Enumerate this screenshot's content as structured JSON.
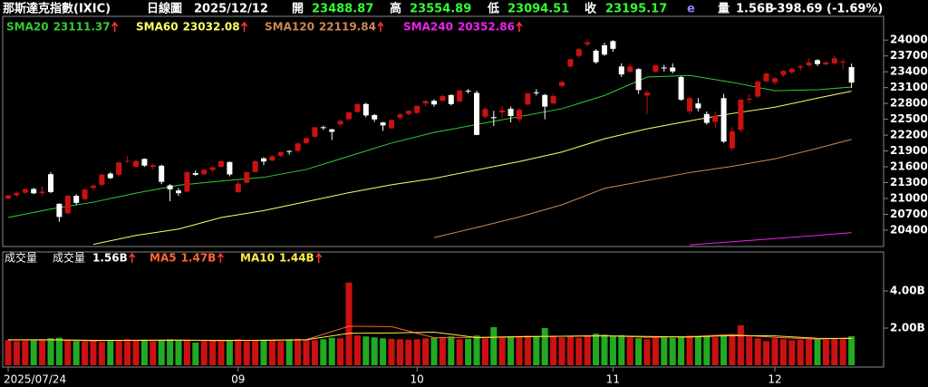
{
  "chart_data": [
    {
      "type": "candlestick",
      "header": {
        "name": "那斯達克指數(IXIC)",
        "period": "日線圖",
        "date": "2025/12/12",
        "fields": [
          {
            "label": "開",
            "value": 23488.87
          },
          {
            "label": "高",
            "value": 23554.89
          },
          {
            "label": "低",
            "value": 23094.51
          },
          {
            "label": "收",
            "value": 23195.17
          }
        ],
        "flag": "e",
        "volume_label": "量",
        "volume": {
          "value": 1.56,
          "label": "1.56B"
        },
        "change": -398.69,
        "change_pct": {
          "value": -1.69,
          "label": "(-1.69%)"
        }
      },
      "up_color": "#cc1111",
      "down_color": "#ffffff",
      "ylim": [
        20090,
        24450
      ],
      "yticks": [
        20400,
        20700,
        21000,
        21300,
        21600,
        21900,
        22200,
        22500,
        22800,
        23100,
        23400,
        23700,
        24000
      ],
      "ohlc": [
        [
          21000,
          21080,
          20980,
          21057
        ],
        [
          21060,
          21130,
          21030,
          21108
        ],
        [
          21110,
          21190,
          21080,
          21178
        ],
        [
          21180,
          21200,
          21080,
          21098
        ],
        [
          21100,
          21230,
          21050,
          21130
        ],
        [
          21460,
          21500,
          21100,
          21122
        ],
        [
          20900,
          20910,
          20560,
          20650
        ],
        [
          20720,
          21060,
          20700,
          21053
        ],
        [
          21050,
          21080,
          20880,
          20916
        ],
        [
          20990,
          21190,
          20960,
          21169
        ],
        [
          21200,
          21280,
          21150,
          21242
        ],
        [
          21260,
          21470,
          21230,
          21450
        ],
        [
          21470,
          21500,
          21370,
          21385
        ],
        [
          21450,
          21690,
          21420,
          21681
        ],
        [
          21700,
          21800,
          21680,
          21713
        ],
        [
          21600,
          21740,
          21580,
          21710
        ],
        [
          21750,
          21760,
          21600,
          21622
        ],
        [
          21600,
          21660,
          21550,
          21630
        ],
        [
          21620,
          21640,
          21270,
          21315
        ],
        [
          21250,
          21270,
          20950,
          21172
        ],
        [
          21150,
          21200,
          21050,
          21100
        ],
        [
          21130,
          21520,
          21120,
          21497
        ],
        [
          21480,
          21530,
          21430,
          21449
        ],
        [
          21460,
          21560,
          21440,
          21544
        ],
        [
          21540,
          21610,
          21500,
          21590
        ],
        [
          21600,
          21720,
          21580,
          21705
        ],
        [
          21690,
          21700,
          21420,
          21455
        ],
        [
          21120,
          21330,
          21100,
          21280
        ],
        [
          21300,
          21510,
          21280,
          21497
        ],
        [
          21500,
          21720,
          21490,
          21707
        ],
        [
          21760,
          21780,
          21630,
          21700
        ],
        [
          21720,
          21820,
          21700,
          21799
        ],
        [
          21810,
          21890,
          21780,
          21879
        ],
        [
          21900,
          21910,
          21830,
          21886
        ],
        [
          21900,
          22060,
          21880,
          22043
        ],
        [
          22050,
          22160,
          22030,
          22141
        ],
        [
          22170,
          22360,
          22150,
          22348
        ],
        [
          22350,
          22380,
          22300,
          22333
        ],
        [
          22310,
          22320,
          22110,
          22261
        ],
        [
          22400,
          22490,
          22380,
          22470
        ],
        [
          22500,
          22640,
          22480,
          22631
        ],
        [
          22640,
          22800,
          22620,
          22788
        ],
        [
          22790,
          22810,
          22540,
          22573
        ],
        [
          22580,
          22600,
          22450,
          22497
        ],
        [
          22440,
          22450,
          22280,
          22384
        ],
        [
          22330,
          22500,
          22320,
          22484
        ],
        [
          22530,
          22620,
          22500,
          22591
        ],
        [
          22600,
          22670,
          22570,
          22660
        ],
        [
          22620,
          22760,
          22600,
          22755
        ],
        [
          22800,
          22860,
          22750,
          22844
        ],
        [
          22850,
          22880,
          22740,
          22780
        ],
        [
          22850,
          22960,
          22830,
          22941
        ],
        [
          22960,
          22970,
          22760,
          22788
        ],
        [
          22840,
          23060,
          22820,
          23043
        ],
        [
          23040,
          23070,
          22990,
          23024
        ],
        [
          23000,
          23040,
          22200,
          22204
        ],
        [
          22550,
          22730,
          22510,
          22694
        ],
        [
          22540,
          22660,
          22370,
          22521
        ],
        [
          22630,
          22750,
          22520,
          22670
        ],
        [
          22700,
          22740,
          22440,
          22562
        ],
        [
          22500,
          22710,
          22450,
          22680
        ],
        [
          22780,
          23000,
          22760,
          22991
        ],
        [
          23010,
          23070,
          22950,
          23005
        ],
        [
          22960,
          22980,
          22500,
          22740
        ],
        [
          22800,
          22980,
          22780,
          22941
        ],
        [
          23130,
          23230,
          23100,
          23205
        ],
        [
          23500,
          23650,
          23480,
          23637
        ],
        [
          23700,
          23850,
          23660,
          23827
        ],
        [
          23920,
          24020,
          23880,
          23958
        ],
        [
          23800,
          23830,
          23550,
          23581
        ],
        [
          23900,
          23950,
          23700,
          23725
        ],
        [
          23980,
          24000,
          23780,
          23834
        ],
        [
          23500,
          23560,
          23300,
          23349
        ],
        [
          23400,
          23560,
          23380,
          23500
        ],
        [
          23450,
          23470,
          22980,
          23054
        ],
        [
          22950,
          23050,
          22600,
          23005
        ],
        [
          23400,
          23530,
          23380,
          23527
        ],
        [
          23480,
          23530,
          23400,
          23468
        ],
        [
          23480,
          23560,
          23370,
          23406
        ],
        [
          23300,
          23320,
          22850,
          22871
        ],
        [
          22650,
          22920,
          22600,
          22901
        ],
        [
          22800,
          22900,
          22650,
          22708
        ],
        [
          22600,
          22650,
          22400,
          22432
        ],
        [
          22450,
          22650,
          22340,
          22564
        ],
        [
          22900,
          22980,
          22050,
          22078
        ],
        [
          21950,
          22350,
          21900,
          22273
        ],
        [
          22300,
          22890,
          22250,
          22872
        ],
        [
          22880,
          22970,
          22800,
          22888
        ],
        [
          22930,
          23230,
          22900,
          23215
        ],
        [
          23220,
          23380,
          23200,
          23366
        ],
        [
          23200,
          23300,
          23150,
          23276
        ],
        [
          23340,
          23430,
          23300,
          23414
        ],
        [
          23390,
          23480,
          23350,
          23454
        ],
        [
          23480,
          23530,
          23420,
          23506
        ],
        [
          23520,
          23650,
          23500,
          23578
        ],
        [
          23620,
          23640,
          23510,
          23546
        ],
        [
          23540,
          23610,
          23520,
          23576
        ],
        [
          23560,
          23700,
          23530,
          23654
        ],
        [
          23590,
          23640,
          23450,
          23593
        ],
        [
          23488.87,
          23554.89,
          23094.51,
          23195.17
        ]
      ],
      "series": [
        {
          "name": "SMA20",
          "latest": 23111.37,
          "color": "#33cc33",
          "x": [
            0,
            5,
            10,
            15,
            20,
            25,
            30,
            35,
            40,
            45,
            50,
            55,
            60,
            65,
            70,
            75,
            80,
            85,
            90,
            95,
            99
          ],
          "values": [
            20640,
            20800,
            20930,
            21100,
            21250,
            21330,
            21400,
            21550,
            21800,
            22050,
            22250,
            22400,
            22550,
            22700,
            22950,
            23300,
            23330,
            23200,
            23040,
            23060,
            23111
          ]
        },
        {
          "name": "SMA60",
          "latest": 23032.08,
          "color": "#ffff66",
          "x": [
            0,
            5,
            10,
            15,
            20,
            25,
            30,
            35,
            40,
            45,
            50,
            55,
            60,
            65,
            70,
            75,
            80,
            85,
            90,
            95,
            99
          ],
          "values": [
            null,
            null,
            20130,
            20300,
            20420,
            20640,
            20770,
            20940,
            21110,
            21260,
            21380,
            21540,
            21700,
            21880,
            22130,
            22320,
            22470,
            22610,
            22730,
            22900,
            23032
          ]
        },
        {
          "name": "SMA120",
          "latest": 22119.84,
          "color": "#cc8855",
          "x": [
            45,
            50,
            55,
            60,
            65,
            70,
            75,
            80,
            85,
            90,
            95,
            99
          ],
          "values": [
            null,
            20260,
            20450,
            20650,
            20880,
            21190,
            21340,
            21490,
            21610,
            21750,
            21950,
            22120
          ]
        },
        {
          "name": "SMA240",
          "latest": 20352.86,
          "color": "#ee22ee",
          "x": [
            78,
            80,
            85,
            90,
            95,
            99
          ],
          "values": [
            null,
            20120,
            20180,
            20240,
            20300,
            20353
          ]
        }
      ]
    },
    {
      "type": "bar",
      "label": "成交量",
      "series_name": "成交量",
      "latest": {
        "value": 1.56,
        "label": "1.56B"
      },
      "up_color": "#cc1111",
      "down_color": "#22aa22",
      "ylim": [
        0,
        6
      ],
      "yticks": [
        {
          "value": 2,
          "label": "2.00B"
        },
        {
          "value": 4,
          "label": "4.00B"
        }
      ],
      "categories": [
        "2025/07/24",
        null,
        null,
        null,
        null,
        null,
        null,
        null,
        null,
        null,
        null,
        null,
        null,
        null,
        null,
        null,
        null,
        null,
        null,
        null,
        null,
        null,
        null,
        null,
        null,
        null,
        null,
        "09",
        null,
        null,
        null,
        null,
        null,
        null,
        null,
        null,
        null,
        null,
        null,
        null,
        null,
        null,
        null,
        null,
        null,
        null,
        null,
        null,
        "10",
        null,
        null,
        null,
        null,
        null,
        null,
        null,
        null,
        null,
        null,
        null,
        null,
        null,
        null,
        null,
        null,
        null,
        null,
        null,
        null,
        null,
        null,
        "11",
        null,
        null,
        null,
        null,
        null,
        null,
        null,
        null,
        null,
        null,
        null,
        null,
        null,
        null,
        null,
        null,
        null,
        null,
        "12",
        null,
        null,
        null,
        null,
        null,
        null,
        null,
        null,
        null
      ],
      "values": [
        1.35,
        1.3,
        1.32,
        1.34,
        1.38,
        1.45,
        1.48,
        1.33,
        1.3,
        1.28,
        1.3,
        1.25,
        1.3,
        1.32,
        1.4,
        1.35,
        1.38,
        1.3,
        1.36,
        1.4,
        1.32,
        1.35,
        1.22,
        1.3,
        1.33,
        1.28,
        1.36,
        1.4,
        1.3,
        1.32,
        1.38,
        1.35,
        1.3,
        1.4,
        1.42,
        1.38,
        1.35,
        1.4,
        1.48,
        1.45,
        4.45,
        1.6,
        1.55,
        1.5,
        1.45,
        1.42,
        1.4,
        1.38,
        1.4,
        1.45,
        1.5,
        1.48,
        1.55,
        1.4,
        1.42,
        1.6,
        1.45,
        2.05,
        1.48,
        1.55,
        1.52,
        1.6,
        1.58,
        2.0,
        1.58,
        1.5,
        1.55,
        1.48,
        1.6,
        1.7,
        1.65,
        1.55,
        1.62,
        1.5,
        1.45,
        1.4,
        1.55,
        1.5,
        1.48,
        1.52,
        1.6,
        1.55,
        1.58,
        1.5,
        1.62,
        1.65,
        2.15,
        1.55,
        1.45,
        1.3,
        1.45,
        1.4,
        1.35,
        1.38,
        1.4,
        1.42,
        1.38,
        1.45,
        1.4,
        1.56
      ],
      "series": [
        {
          "name": "MA5",
          "latest": {
            "value": 1.47,
            "label": "1.47B"
          },
          "color": "#ff6633",
          "x": [
            0,
            5,
            10,
            15,
            20,
            25,
            30,
            35,
            40,
            45,
            50,
            55,
            60,
            65,
            70,
            75,
            80,
            85,
            90,
            95,
            99
          ],
          "values": [
            1.36,
            1.36,
            1.32,
            1.35,
            1.36,
            1.32,
            1.35,
            1.38,
            2.1,
            2.08,
            1.48,
            1.5,
            1.55,
            1.56,
            1.6,
            1.5,
            1.54,
            1.65,
            1.5,
            1.4,
            1.47
          ]
        },
        {
          "name": "MA10",
          "latest": {
            "value": 1.44,
            "label": "1.44B"
          },
          "color": "#ffee44",
          "x": [
            0,
            5,
            10,
            15,
            20,
            25,
            30,
            35,
            40,
            45,
            50,
            55,
            60,
            65,
            70,
            75,
            80,
            85,
            90,
            95,
            99
          ],
          "values": [
            1.37,
            1.37,
            1.34,
            1.34,
            1.35,
            1.34,
            1.34,
            1.37,
            1.72,
            1.74,
            1.78,
            1.49,
            1.53,
            1.56,
            1.58,
            1.55,
            1.52,
            1.6,
            1.58,
            1.45,
            1.44
          ]
        }
      ]
    }
  ]
}
